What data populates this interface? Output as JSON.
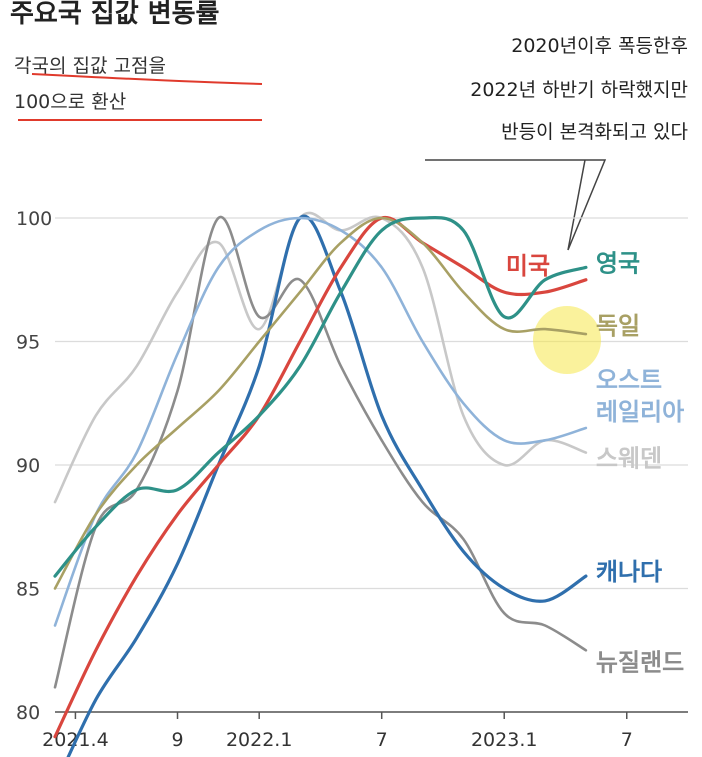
{
  "title": "주요국 집값 변동률",
  "subtitle_lines": [
    "각국의 집값 고점을",
    "100으로 환산"
  ],
  "annotation_lines": [
    "2020년이후 폭등한후",
    "2022년 하반기 하락했지만",
    "반등이 본격화되고 있다"
  ],
  "chart_data": {
    "type": "line",
    "ylim": [
      80,
      100
    ],
    "yticks": [
      100,
      95,
      90,
      85,
      80
    ],
    "xlim": [
      "2021-03",
      "2023-10"
    ],
    "xticks": [
      {
        "x": "2021-04",
        "label": "2021.4"
      },
      {
        "x": "2021-09",
        "label": "9"
      },
      {
        "x": "2022-01",
        "label": "2022.1"
      },
      {
        "x": "2022-07",
        "label": "7"
      },
      {
        "x": "2023-01",
        "label": "2023.1"
      },
      {
        "x": "2023-07",
        "label": "7"
      }
    ],
    "grid": true,
    "series": [
      {
        "name": "스웨덴",
        "color": "#c8c8c8",
        "label_x": "2023-05",
        "x": [
          "2021-03",
          "2021-05",
          "2021-07",
          "2021-09",
          "2021-11",
          "2022-01",
          "2022-03",
          "2022-05",
          "2022-07",
          "2022-09",
          "2022-11",
          "2023-01",
          "2023-03",
          "2023-05"
        ],
        "values": [
          88.5,
          92,
          94,
          97,
          99,
          95.5,
          100,
          99.5,
          100,
          98,
          92,
          90,
          91,
          90.5
        ]
      },
      {
        "name": "뉴질랜드",
        "color": "#8c8c8c",
        "label_x": "2023-05",
        "x": [
          "2021-03",
          "2021-05",
          "2021-07",
          "2021-09",
          "2021-11",
          "2022-01",
          "2022-03",
          "2022-05",
          "2022-07",
          "2022-09",
          "2022-11",
          "2023-01",
          "2023-03",
          "2023-05"
        ],
        "values": [
          81,
          87.5,
          89,
          93,
          100,
          96,
          97.5,
          94,
          91,
          88.5,
          87,
          84,
          83.5,
          82.5
        ]
      },
      {
        "name": "캐나다",
        "color": "#2f6fad",
        "label_x": "2023-05",
        "x": [
          "2021-03",
          "2021-05",
          "2021-07",
          "2021-09",
          "2021-11",
          "2022-01",
          "2022-03",
          "2022-05",
          "2022-07",
          "2022-09",
          "2022-11",
          "2023-01",
          "2023-03",
          "2023-05"
        ],
        "values": [
          77,
          80.5,
          83,
          86,
          90,
          94,
          100,
          97,
          92,
          89,
          86.5,
          85,
          84.5,
          85.5
        ]
      },
      {
        "name": "오스트레일리아",
        "color": "#8fb3d9",
        "label_x": "2023-05",
        "x": [
          "2021-03",
          "2021-05",
          "2021-07",
          "2021-09",
          "2021-11",
          "2022-01",
          "2022-03",
          "2022-05",
          "2022-07",
          "2022-09",
          "2022-11",
          "2023-01",
          "2023-03",
          "2023-05"
        ],
        "values": [
          83.5,
          88,
          90.5,
          94.5,
          98,
          99.5,
          100,
          99.5,
          98,
          95,
          92.5,
          91,
          91,
          91.5
        ]
      },
      {
        "name": "미국",
        "color": "#d9463e",
        "label_x": "2023-02",
        "x": [
          "2021-03",
          "2021-05",
          "2021-07",
          "2021-09",
          "2021-11",
          "2022-01",
          "2022-03",
          "2022-05",
          "2022-07",
          "2022-09",
          "2022-11",
          "2023-01",
          "2023-03",
          "2023-05"
        ],
        "values": [
          79,
          82.5,
          85.5,
          88,
          90,
          92,
          95,
          98,
          100,
          99,
          98,
          97,
          97,
          97.5
        ]
      },
      {
        "name": "독일",
        "color": "#a8a064",
        "label_x": "2023-05",
        "x": [
          "2021-03",
          "2021-05",
          "2021-07",
          "2021-09",
          "2021-11",
          "2022-01",
          "2022-03",
          "2022-05",
          "2022-07",
          "2022-09",
          "2022-11",
          "2023-01",
          "2023-03",
          "2023-05"
        ],
        "values": [
          85,
          88,
          90,
          91.5,
          93,
          95,
          97,
          99,
          100,
          99,
          97,
          95.5,
          95.5,
          95.3
        ]
      },
      {
        "name": "영국",
        "color": "#2e9188",
        "label_x": "2023-05",
        "x": [
          "2021-03",
          "2021-05",
          "2021-07",
          "2021-09",
          "2021-11",
          "2022-01",
          "2022-03",
          "2022-05",
          "2022-07",
          "2022-09",
          "2022-11",
          "2023-01",
          "2023-03",
          "2023-05"
        ],
        "values": [
          85.5,
          87.5,
          89,
          89,
          90.5,
          92,
          94,
          97,
          99.5,
          100,
          99.5,
          96,
          97.5,
          98
        ]
      }
    ]
  }
}
